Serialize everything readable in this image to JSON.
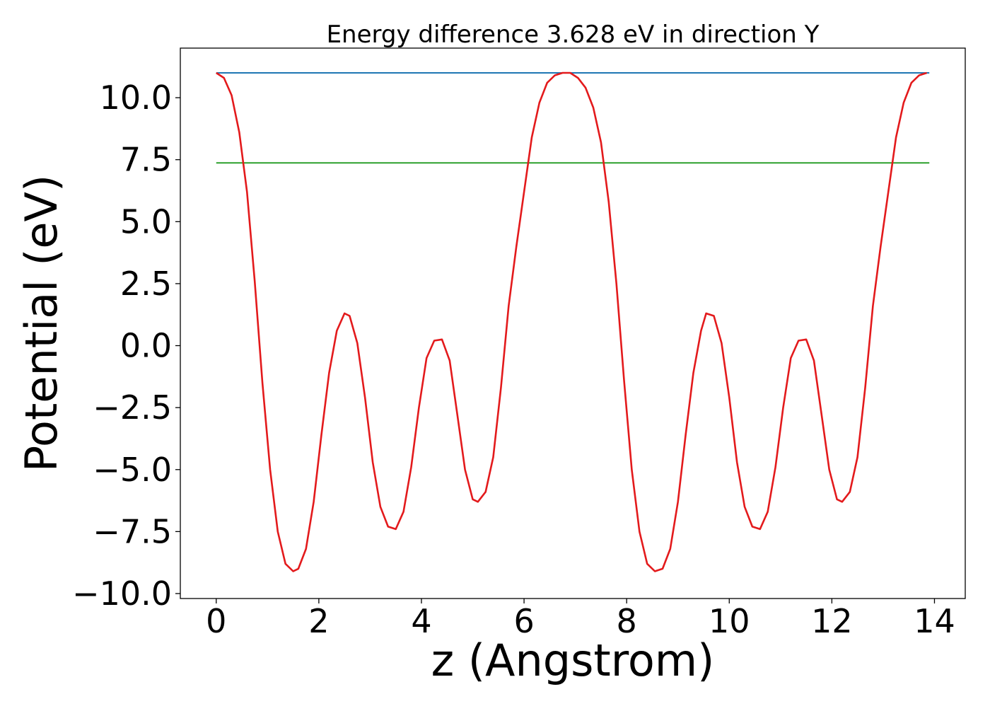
{
  "chart_data": {
    "type": "line",
    "title": "Energy difference 3.628 eV in direction Y",
    "xlabel": "z (Angstrom)",
    "ylabel": "Potential (eV)",
    "xlim": [
      -0.7,
      14.6
    ],
    "ylim": [
      -10.2,
      12.0
    ],
    "x_ticks": [
      0,
      2,
      4,
      6,
      8,
      10,
      12,
      14
    ],
    "x_tick_labels": [
      "0",
      "2",
      "4",
      "6",
      "8",
      "10",
      "12",
      "14"
    ],
    "y_ticks": [
      -10.0,
      -7.5,
      -5.0,
      -2.5,
      0.0,
      2.5,
      5.0,
      7.5,
      10.0
    ],
    "y_tick_labels": [
      "−10.0",
      "−7.5",
      "−5.0",
      "−2.5",
      "0.0",
      "2.5",
      "5.0",
      "7.5",
      "10.0"
    ],
    "grid": false,
    "series": [
      {
        "kind": "curve",
        "color": "#e31a1c",
        "x": [
          0.0,
          0.15,
          0.3,
          0.45,
          0.6,
          0.75,
          0.9,
          1.05,
          1.2,
          1.35,
          1.5,
          1.6,
          1.75,
          1.9,
          2.05,
          2.2,
          2.35,
          2.5,
          2.6,
          2.75,
          2.9,
          3.05,
          3.2,
          3.35,
          3.5,
          3.65,
          3.8,
          3.95,
          4.1,
          4.25,
          4.4,
          4.55,
          4.7,
          4.85,
          5.0,
          5.1,
          5.25,
          5.4,
          5.55,
          5.7,
          5.85,
          6.0,
          6.15,
          6.3,
          6.45,
          6.6,
          6.75,
          6.9,
          7.05,
          7.2,
          7.35,
          7.5,
          7.65,
          7.8,
          7.95,
          8.1,
          8.25,
          8.4,
          8.55,
          8.7,
          8.85,
          9.0,
          9.15,
          9.3,
          9.45,
          9.55,
          9.7,
          9.85,
          10.0,
          10.15,
          10.3,
          10.45,
          10.6,
          10.75,
          10.9,
          11.05,
          11.2,
          11.35,
          11.5,
          11.65,
          11.8,
          11.95,
          12.1,
          12.2,
          12.35,
          12.5,
          12.65,
          12.8,
          12.95,
          13.1,
          13.25,
          13.4,
          13.55,
          13.7,
          13.85
        ],
        "y": [
          11.0,
          10.8,
          10.1,
          8.6,
          6.2,
          2.6,
          -1.5,
          -5.0,
          -7.5,
          -8.8,
          -9.1,
          -9.0,
          -8.2,
          -6.3,
          -3.6,
          -1.1,
          0.6,
          1.3,
          1.2,
          0.1,
          -2.1,
          -4.7,
          -6.5,
          -7.3,
          -7.4,
          -6.7,
          -4.9,
          -2.5,
          -0.5,
          0.2,
          0.25,
          -0.6,
          -2.8,
          -5.0,
          -6.2,
          -6.3,
          -5.9,
          -4.5,
          -1.7,
          1.6,
          4.0,
          6.2,
          8.4,
          9.8,
          10.6,
          10.9,
          11.0,
          11.0,
          10.8,
          10.4,
          9.6,
          8.2,
          5.8,
          2.5,
          -1.4,
          -5.0,
          -7.5,
          -8.8,
          -9.1,
          -9.0,
          -8.2,
          -6.3,
          -3.6,
          -1.1,
          0.6,
          1.3,
          1.2,
          0.1,
          -2.1,
          -4.7,
          -6.5,
          -7.3,
          -7.4,
          -6.7,
          -4.9,
          -2.5,
          -0.5,
          0.2,
          0.25,
          -0.6,
          -2.8,
          -5.0,
          -6.2,
          -6.3,
          -5.9,
          -4.5,
          -1.7,
          1.6,
          4.0,
          6.2,
          8.4,
          9.8,
          10.6,
          10.9,
          11.0
        ]
      },
      {
        "kind": "hline",
        "color": "#1f77b4",
        "y": 11.0,
        "x": [
          0.0,
          13.9
        ]
      },
      {
        "kind": "hline",
        "color": "#2ca02c",
        "y": 7.37,
        "x": [
          0.0,
          13.9
        ]
      }
    ]
  }
}
